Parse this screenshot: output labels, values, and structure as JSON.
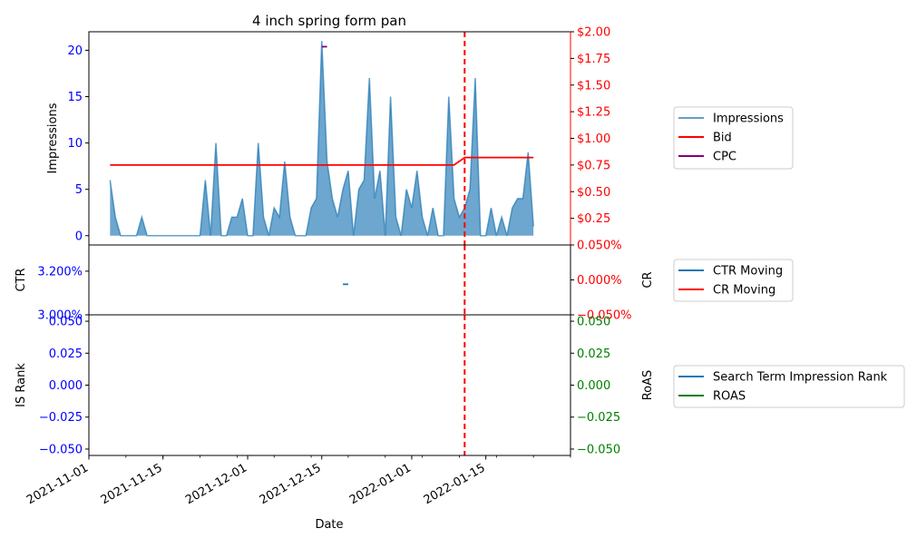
{
  "colors": {
    "impressions": "#1f77b4",
    "bid": "#ff0000",
    "cpc": "#800080",
    "ctr": "#1f77b4",
    "cr": "#ff0000",
    "is_rank": "#1f77b4",
    "roas": "#008000",
    "left_tick": "#0000ff",
    "cr_tick": "#ff0000",
    "roas_tick": "#008000",
    "marker_line": "#ff0000"
  },
  "chart_data": {
    "type": "line",
    "title": "4 inch spring form pan",
    "xlabel": "Date",
    "x_ticks": [
      "2021-11-01",
      "2021-11-15",
      "2021-12-01",
      "2021-12-15",
      "2022-01-01",
      "2022-01-15"
    ],
    "x_range": [
      "2021-11-01",
      "2022-01-31"
    ],
    "vline_date": "2022-01-11",
    "panels": [
      {
        "id": "top",
        "left_axis": {
          "label": "Impressions",
          "range": [
            -1,
            22
          ],
          "ticks": [
            0,
            5,
            10,
            15,
            20
          ],
          "tick_labels": [
            "0",
            "5",
            "10",
            "15",
            "20"
          ]
        },
        "right_axis": {
          "label": "",
          "range": [
            0.0,
            2.0
          ],
          "ticks": [
            0.25,
            0.5,
            0.75,
            1.0,
            1.25,
            1.5,
            1.75,
            2.0
          ],
          "tick_labels": [
            "$0.25",
            "$0.50",
            "$0.75",
            "$1.00",
            "$1.25",
            "$1.50",
            "$1.75",
            "$2.00"
          ]
        },
        "legend": [
          "Impressions",
          "Bid",
          "CPC"
        ],
        "impressions": {
          "name": "Impressions",
          "dates": [
            "2021-11-05",
            "2021-11-06",
            "2021-11-07",
            "2021-11-08",
            "2021-11-09",
            "2021-11-10",
            "2021-11-11",
            "2021-11-12",
            "2021-11-13",
            "2021-11-14",
            "2021-11-15",
            "2021-11-16",
            "2021-11-17",
            "2021-11-18",
            "2021-11-19",
            "2021-11-20",
            "2021-11-21",
            "2021-11-22",
            "2021-11-23",
            "2021-11-24",
            "2021-11-25",
            "2021-11-26",
            "2021-11-27",
            "2021-11-28",
            "2021-11-29",
            "2021-11-30",
            "2021-12-01",
            "2021-12-02",
            "2021-12-03",
            "2021-12-04",
            "2021-12-05",
            "2021-12-06",
            "2021-12-07",
            "2021-12-08",
            "2021-12-09",
            "2021-12-10",
            "2021-12-11",
            "2021-12-12",
            "2021-12-13",
            "2021-12-14",
            "2021-12-15",
            "2021-12-16",
            "2021-12-17",
            "2021-12-18",
            "2021-12-19",
            "2021-12-20",
            "2021-12-21",
            "2021-12-22",
            "2021-12-23",
            "2021-12-24",
            "2021-12-25",
            "2021-12-26",
            "2021-12-27",
            "2021-12-28",
            "2021-12-29",
            "2021-12-30",
            "2021-12-31",
            "2022-01-01",
            "2022-01-02",
            "2022-01-03",
            "2022-01-04",
            "2022-01-05",
            "2022-01-06",
            "2022-01-07",
            "2022-01-08",
            "2022-01-09",
            "2022-01-10",
            "2022-01-11",
            "2022-01-12",
            "2022-01-13",
            "2022-01-14",
            "2022-01-15",
            "2022-01-16",
            "2022-01-17",
            "2022-01-18",
            "2022-01-19",
            "2022-01-20",
            "2022-01-21",
            "2022-01-22",
            "2022-01-23",
            "2022-01-24"
          ],
          "values": [
            6,
            2,
            0,
            0,
            0,
            0,
            2,
            0,
            0,
            0,
            0,
            0,
            0,
            0,
            0,
            0,
            0,
            0,
            6,
            0,
            10,
            0,
            0,
            2,
            2,
            4,
            0,
            0,
            10,
            2,
            0,
            3,
            2,
            8,
            2,
            0,
            0,
            0,
            3,
            4,
            21,
            8,
            4,
            2,
            5,
            7,
            0,
            5,
            6,
            17,
            4,
            7,
            0,
            15,
            2,
            0,
            5,
            3,
            7,
            2,
            0,
            3,
            0,
            0,
            15,
            4,
            2,
            3,
            5,
            17,
            0,
            0,
            3,
            0,
            2,
            0,
            3,
            4,
            4,
            9,
            1
          ]
        },
        "bid": {
          "name": "Bid",
          "dates": [
            "2021-11-05",
            "2022-01-09",
            "2022-01-11",
            "2022-01-24"
          ],
          "values": [
            0.75,
            0.75,
            0.82,
            0.82
          ]
        },
        "cpc": {
          "name": "CPC",
          "dates": [
            "2021-12-15",
            "2021-12-16"
          ],
          "values": [
            1.86,
            1.86
          ]
        }
      },
      {
        "id": "middle",
        "left_axis": {
          "label": "CTR",
          "range": [
            3.0,
            3.32
          ],
          "ticks": [
            3.0,
            3.2
          ],
          "tick_labels": [
            "3.000%",
            "3.200%"
          ]
        },
        "right_axis": {
          "label": "CR",
          "range": [
            -0.05,
            0.05
          ],
          "ticks": [
            -0.05,
            0.0,
            0.05
          ],
          "tick_labels": [
            "−0.050%",
            "0.000%",
            "0.050%"
          ]
        },
        "legend": [
          "CTR Moving",
          "CR Moving"
        ],
        "ctr": {
          "name": "CTR Moving",
          "dates": [
            "2021-12-19",
            "2021-12-20"
          ],
          "values": [
            3.14,
            3.14
          ]
        },
        "cr": {
          "name": "CR Moving",
          "dates": [],
          "values": []
        }
      },
      {
        "id": "bottom",
        "left_axis": {
          "label": "IS Rank",
          "range": [
            -0.055,
            0.055
          ],
          "ticks": [
            -0.05,
            -0.025,
            0.0,
            0.025,
            0.05
          ],
          "tick_labels": [
            "−0.050",
            "−0.025",
            "0.000",
            "0.025",
            "0.050"
          ]
        },
        "right_axis": {
          "label": "RoAS",
          "range": [
            -0.055,
            0.055
          ],
          "ticks": [
            -0.05,
            -0.025,
            0.0,
            0.025,
            0.05
          ],
          "tick_labels": [
            "−0.050",
            "−0.025",
            "0.000",
            "0.025",
            "0.050"
          ]
        },
        "legend": [
          "Search Term Impression Rank",
          "ROAS"
        ],
        "is_rank": {
          "name": "Search Term Impression Rank",
          "dates": [],
          "values": []
        },
        "roas": {
          "name": "ROAS",
          "dates": [],
          "values": []
        }
      }
    ]
  }
}
